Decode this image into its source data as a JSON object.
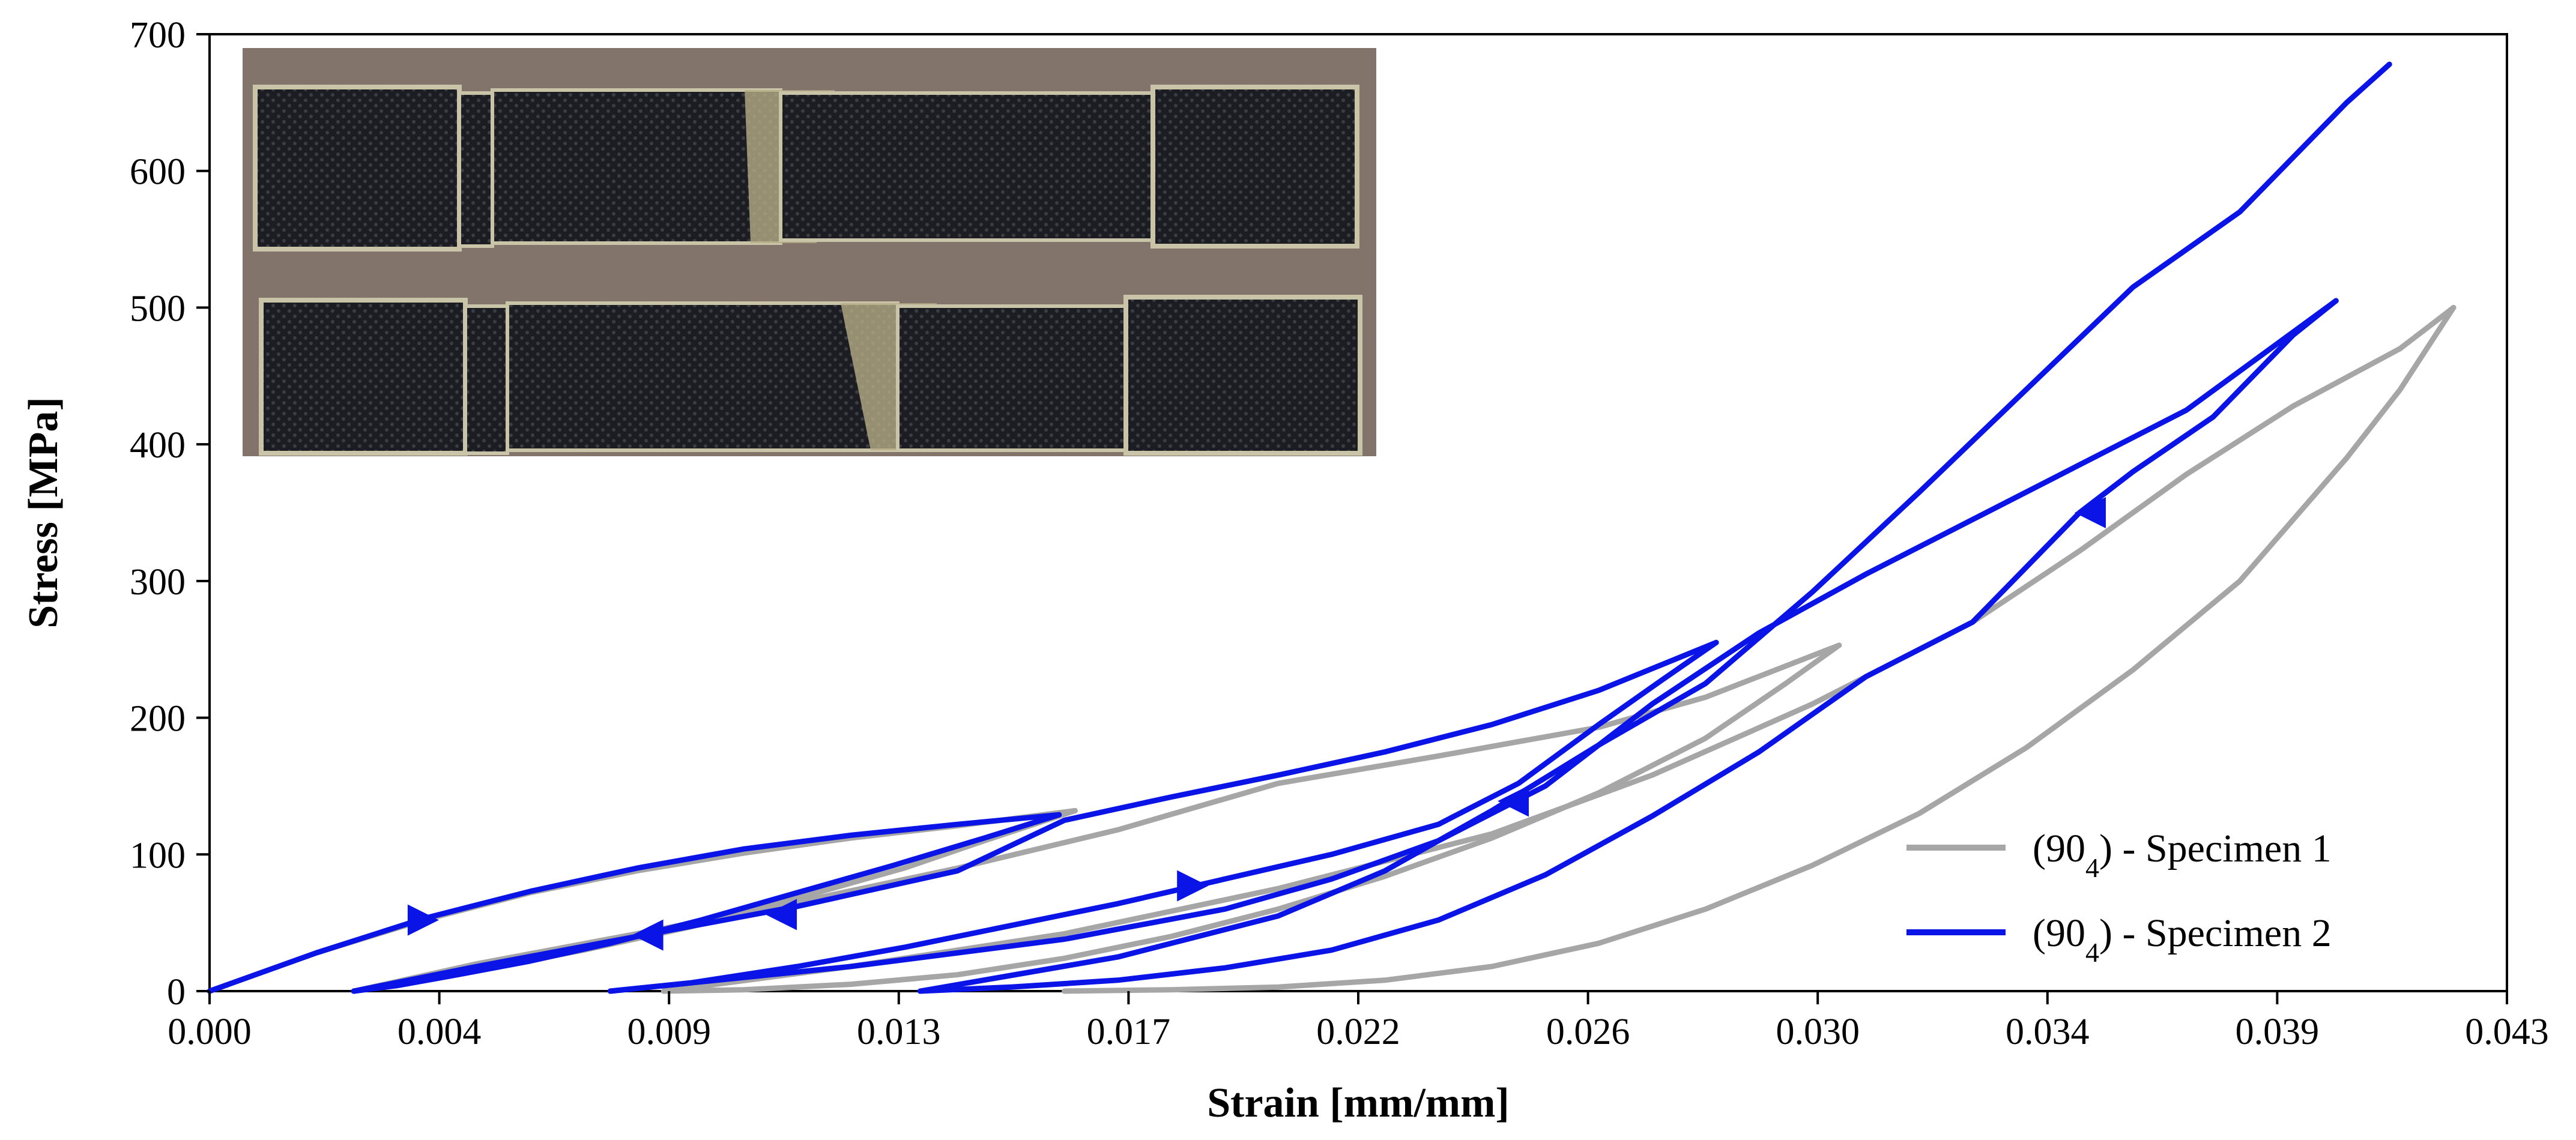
{
  "chart_data": {
    "type": "line",
    "title": "",
    "xlabel": "Strain [mm/mm]",
    "ylabel": "Stress [MPa]",
    "xlim": [
      0.0,
      0.043
    ],
    "ylim": [
      0,
      700
    ],
    "x_ticks": [
      "0.000",
      "0.004",
      "0.009",
      "0.013",
      "0.017",
      "0.022",
      "0.026",
      "0.030",
      "0.034",
      "0.039",
      "0.043"
    ],
    "y_ticks": [
      "0",
      "100",
      "200",
      "300",
      "400",
      "500",
      "600",
      "700"
    ],
    "grid": false,
    "legend_position": "bottom-right",
    "inset_photo": "photo of two fractured woven composite (90_4) tensile specimens",
    "series": [
      {
        "name_base": "(90",
        "name_sub": "4",
        "name_rest": ") - Specimen 1",
        "color": "#a6a6a6",
        "segments": [
          {
            "kind": "load",
            "x": [
              0.0,
              0.002,
              0.004,
              0.006,
              0.008,
              0.01,
              0.012,
              0.014,
              0.0162
            ],
            "y": [
              0,
              28,
              52,
              72,
              88,
              101,
              112,
              121,
              132
            ]
          },
          {
            "kind": "unload",
            "x": [
              0.0162,
              0.0145,
              0.013,
              0.011,
              0.009,
              0.007,
              0.005,
              0.0035,
              0.0027
            ],
            "y": [
              132,
              110,
              90,
              68,
              47,
              30,
              15,
              5,
              0
            ]
          },
          {
            "kind": "reload",
            "x": [
              0.0027,
              0.005,
              0.008,
              0.011,
              0.014,
              0.017,
              0.02,
              0.023,
              0.026,
              0.028,
              0.0305
            ],
            "y": [
              0,
              20,
              42,
              65,
              90,
              118,
              152,
              172,
              193,
              215,
              253
            ]
          },
          {
            "kind": "unload",
            "x": [
              0.0305,
              0.0295,
              0.028,
              0.026,
              0.024,
              0.022,
              0.02,
              0.018,
              0.016,
              0.014,
              0.012,
              0.01,
              0.0085
            ],
            "y": [
              253,
              225,
              185,
              145,
              112,
              84,
              60,
              40,
              24,
              12,
              5,
              1,
              0
            ]
          },
          {
            "kind": "reload",
            "x": [
              0.0085,
              0.012,
              0.016,
              0.02,
              0.024,
              0.027,
              0.03,
              0.033,
              0.035,
              0.037,
              0.039,
              0.041,
              0.042
            ],
            "y": [
              0,
              18,
              42,
              75,
              115,
              158,
              210,
              270,
              322,
              378,
              428,
              470,
              500
            ]
          },
          {
            "kind": "unload",
            "x": [
              0.042,
              0.041,
              0.04,
              0.038,
              0.036,
              0.034,
              0.032,
              0.03,
              0.028,
              0.026,
              0.024,
              0.022,
              0.02,
              0.018,
              0.016
            ],
            "y": [
              500,
              440,
              390,
              300,
              235,
              178,
              130,
              92,
              60,
              35,
              18,
              8,
              3,
              1,
              0
            ]
          }
        ]
      },
      {
        "name_base": "(90",
        "name_sub": "4",
        "name_rest": ") - Specimen 2",
        "color": "#0a14e6",
        "segments": [
          {
            "kind": "load",
            "x": [
              0.0,
              0.002,
              0.004,
              0.006,
              0.008,
              0.01,
              0.012,
              0.014,
              0.0159
            ],
            "y": [
              0,
              28,
              53,
              73,
              90,
              104,
              114,
              122,
              129
            ]
          },
          {
            "kind": "unload",
            "x": [
              0.0159,
              0.0145,
              0.0128,
              0.011,
              0.0092,
              0.0075,
              0.006,
              0.0045,
              0.0035,
              0.0027
            ],
            "y": [
              129,
              112,
              92,
              72,
              52,
              35,
              22,
              11,
              4,
              0
            ]
          },
          {
            "kind": "reload",
            "x": [
              0.0027,
              0.005,
              0.008,
              0.011,
              0.014,
              0.016,
              0.018,
              0.02,
              0.022,
              0.024,
              0.026,
              0.0282
            ],
            "y": [
              0,
              18,
              40,
              62,
              88,
              125,
              142,
              158,
              175,
              195,
              220,
              255
            ]
          },
          {
            "kind": "unload",
            "x": [
              0.0282,
              0.0272,
              0.026,
              0.0245,
              0.023,
              0.021,
              0.019,
              0.017,
              0.015,
              0.013,
              0.011,
              0.009,
              0.0075
            ],
            "y": [
              255,
              228,
              195,
              152,
              122,
              100,
              82,
              64,
              48,
              32,
              18,
              6,
              0
            ]
          },
          {
            "kind": "reload",
            "x": [
              0.0075,
              0.012,
              0.016,
              0.019,
              0.021,
              0.023,
              0.025,
              0.027,
              0.029,
              0.031,
              0.033,
              0.035,
              0.037,
              0.0398
            ],
            "y": [
              0,
              18,
              38,
              60,
              82,
              110,
              150,
              210,
              262,
              305,
              345,
              385,
              425,
              505
            ]
          },
          {
            "kind": "unload",
            "x": [
              0.0398,
              0.039,
              0.0375,
              0.036,
              0.035,
              0.034,
              0.033,
              0.031,
              0.029,
              0.027,
              0.025,
              0.023,
              0.021,
              0.019,
              0.017,
              0.015,
              0.0133
            ],
            "y": [
              505,
              480,
              420,
              380,
              350,
              310,
              270,
              230,
              175,
              128,
              85,
              52,
              30,
              17,
              8,
              3,
              0
            ]
          },
          {
            "kind": "final-load",
            "x": [
              0.0133,
              0.017,
              0.02,
              0.022,
              0.024,
              0.026,
              0.028,
              0.03,
              0.032,
              0.034,
              0.036,
              0.038,
              0.039,
              0.04,
              0.0408
            ],
            "y": [
              0,
              25,
              55,
              88,
              132,
              180,
              225,
              292,
              365,
              440,
              515,
              570,
              610,
              650,
              678
            ]
          }
        ],
        "arrows": [
          {
            "x": 0.004,
            "y": 52,
            "dir": "right"
          },
          {
            "x": 0.0082,
            "y": 41,
            "dir": "left"
          },
          {
            "x": 0.0107,
            "y": 56,
            "dir": "left"
          },
          {
            "x": 0.0184,
            "y": 77,
            "dir": "right"
          },
          {
            "x": 0.0244,
            "y": 139,
            "dir": "left"
          },
          {
            "x": 0.0352,
            "y": 350,
            "dir": "left"
          }
        ]
      }
    ]
  }
}
